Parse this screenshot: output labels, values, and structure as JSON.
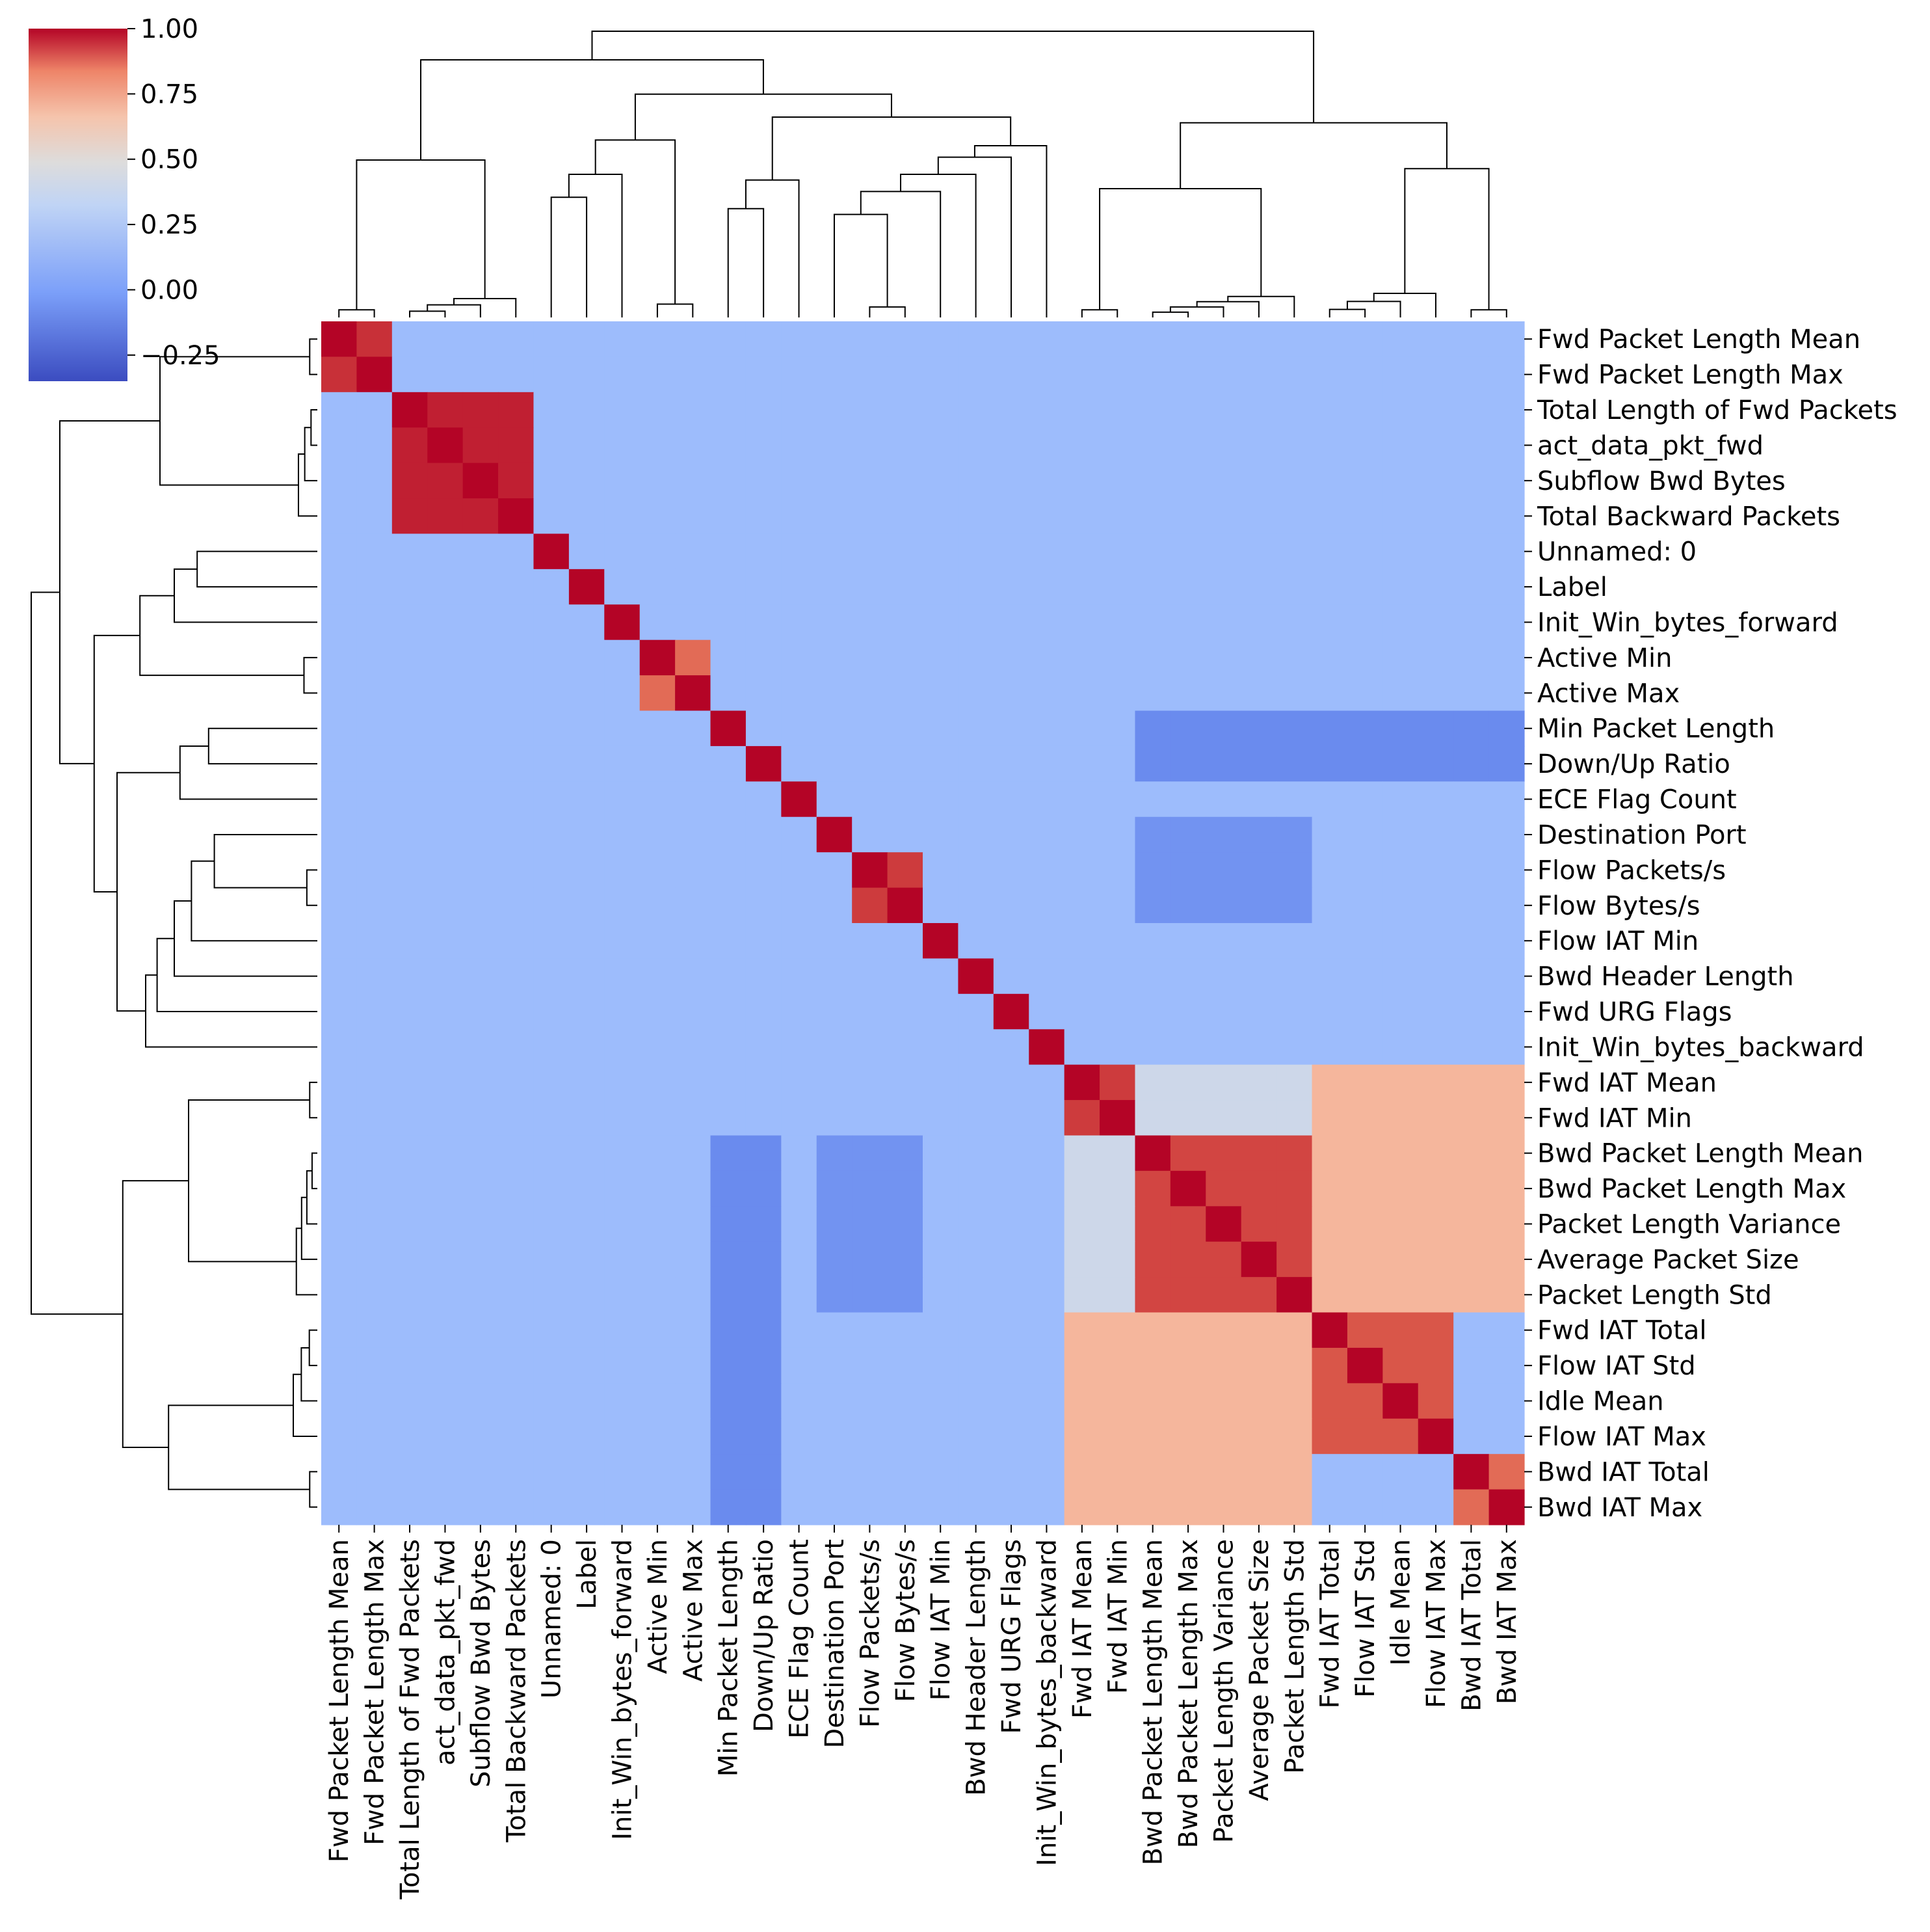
{
  "chart_data": {
    "type": "heatmap",
    "variant": "clustermap",
    "colormap": "coolwarm",
    "vmin": -0.35,
    "vmax": 1.0,
    "labels": [
      "Fwd Packet Length Mean",
      "Fwd Packet Length Max",
      "Total Length of Fwd Packets",
      "act_data_pkt_fwd",
      "Subflow Bwd Bytes",
      "Total Backward Packets",
      "Unnamed: 0",
      "Label",
      "Init_Win_bytes_forward",
      "Active Min",
      "Active Max",
      "Min Packet Length",
      "Down/Up Ratio",
      "ECE Flag Count",
      "Destination Port",
      "Flow Packets/s",
      "Flow Bytes/s",
      "Flow IAT Min",
      "Bwd Header Length",
      "Fwd URG Flags",
      "Init_Win_bytes_backward",
      "Fwd IAT Mean",
      "Fwd IAT Min",
      "Bwd Packet Length Mean",
      "Bwd Packet Length Max",
      "Packet Length Variance",
      "Average Packet Size",
      "Packet Length Std",
      "Fwd IAT Total",
      "Flow IAT Std",
      "Idle Mean",
      "Flow IAT Max",
      "Bwd IAT Total",
      "Bwd IAT Max"
    ],
    "colorbar": {
      "ticks": [
        1.0,
        0.75,
        0.5,
        0.25,
        0.0,
        -0.25
      ],
      "tick_labels": [
        "1.00",
        "0.75",
        "0.50",
        "0.25",
        "0.00",
        "−0.25"
      ]
    },
    "blocks": [
      {
        "from": "Fwd Packet Length Mean",
        "to": "Fwd Packet Length Max",
        "value": 0.92
      },
      {
        "from": "Total Length of Fwd Packets",
        "to": "Total Backward Packets",
        "value": 0.95
      },
      {
        "from": "Active Min",
        "to": "Active Max",
        "value": 0.8
      },
      {
        "from": "Flow Packets/s",
        "to": "Flow Bytes/s",
        "value": 0.9
      },
      {
        "from": "Fwd IAT Mean",
        "to": "Fwd IAT Min",
        "value": 0.9
      },
      {
        "from": "Bwd Packet Length Mean",
        "to": "Packet Length Std",
        "value": 0.88
      },
      {
        "from": "Fwd IAT Total",
        "to": "Flow IAT Max",
        "value": 0.85
      },
      {
        "from": "Bwd IAT Total",
        "to": "Bwd IAT Max",
        "value": 0.8
      }
    ],
    "off_diagonal_regions": [
      {
        "rows_from": "Fwd IAT Mean",
        "rows_to": "Fwd IAT Min",
        "cols_from": "Bwd Packet Length Mean",
        "cols_to": "Packet Length Std",
        "value": 0.28
      },
      {
        "rows_from": "Fwd IAT Mean",
        "rows_to": "Fwd IAT Min",
        "cols_from": "Fwd IAT Total",
        "cols_to": "Bwd IAT Max",
        "value": 0.55
      },
      {
        "rows_from": "Bwd Packet Length Mean",
        "rows_to": "Packet Length Std",
        "cols_from": "Fwd IAT Total",
        "cols_to": "Bwd IAT Max",
        "value": 0.55
      },
      {
        "rows_from": "Bwd Packet Length Mean",
        "rows_to": "Packet Length Std",
        "cols_from": "Fwd IAT Mean",
        "cols_to": "Fwd IAT Min",
        "value": 0.25
      },
      {
        "rows_from": "Fwd IAT Total",
        "rows_to": "Bwd IAT Max",
        "cols_from": "Fwd IAT Mean",
        "cols_to": "Fwd IAT Min",
        "value": 0.55
      },
      {
        "rows_from": "Fwd IAT Total",
        "rows_to": "Bwd IAT Max",
        "cols_from": "Bwd Packet Length Mean",
        "cols_to": "Packet Length Std",
        "value": 0.55
      },
      {
        "rows_from": "Min Packet Length",
        "rows_to": "Down/Up Ratio",
        "cols_from": "Bwd Packet Length Mean",
        "cols_to": "Bwd IAT Max",
        "value": -0.15
      },
      {
        "rows_from": "Destination Port",
        "rows_to": "Flow Bytes/s",
        "cols_from": "Bwd Packet Length Mean",
        "cols_to": "Packet Length Std",
        "value": -0.12
      }
    ],
    "baseline_value": 0.05,
    "dendrogram": true
  }
}
